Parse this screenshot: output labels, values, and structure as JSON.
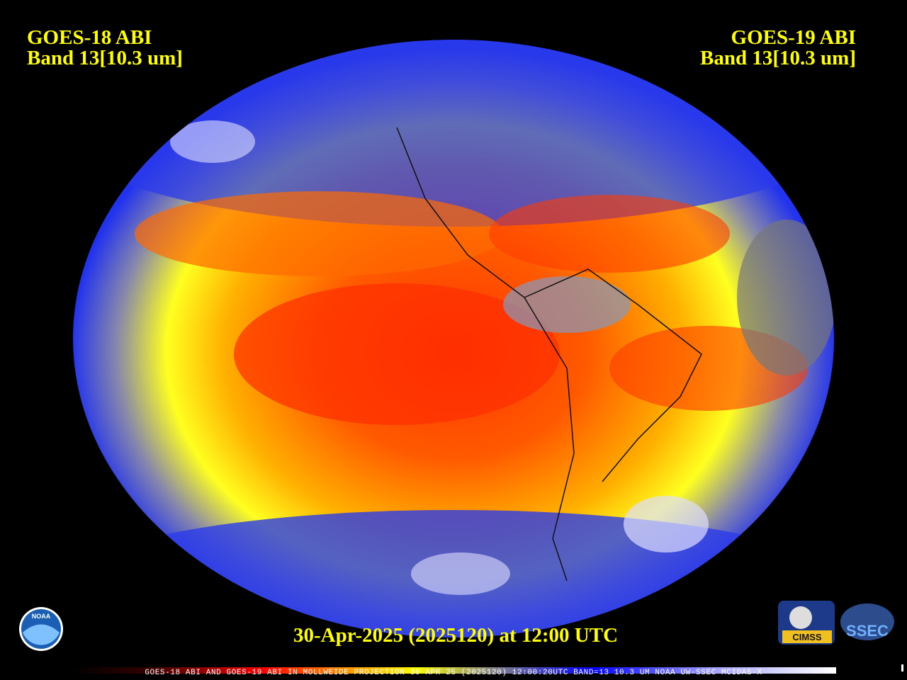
{
  "header": {
    "left": {
      "satellite": "GOES-18 ABI",
      "band": "Band 13[10.3 um]"
    },
    "right": {
      "satellite": "GOES-19 ABI",
      "band": "Band 13[10.3 um]"
    }
  },
  "timestamp": "30-Apr-2025 (2025120) at 12:00 UTC",
  "footer": "GOES-18 ABI AND GOES-19 ABI IN MOLLWEIDE PROJECTION 30 APR 25 (2025120) 12:00:20UTC BAND=13 10.3 UM NOAA UW-SSEC MCIDAS-X",
  "logos": {
    "noaa": "NOAA",
    "cimss": "CIMSS",
    "ssec": "SSEC"
  }
}
